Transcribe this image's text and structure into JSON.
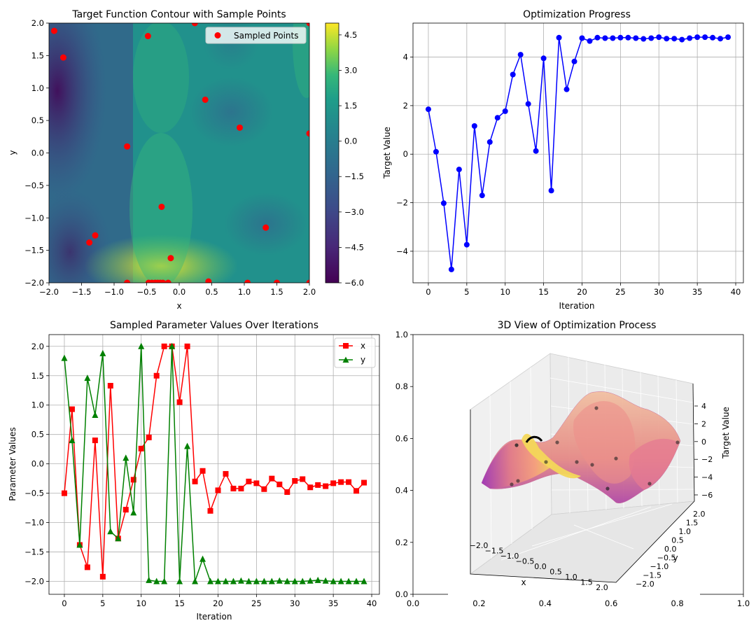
{
  "chart_data": [
    {
      "id": "contour",
      "type": "contour",
      "title": "Target Function Contour with Sample Points",
      "xlabel": "x",
      "ylabel": "y",
      "xlim": [
        -2,
        2
      ],
      "ylim": [
        -2,
        2
      ],
      "xticks": [
        "−2.0",
        "−1.5",
        "−1.0",
        "−0.5",
        "0.0",
        "0.5",
        "1.0",
        "1.5",
        "2.0"
      ],
      "yticks": [
        "−2.0",
        "−1.5",
        "−1.0",
        "−0.5",
        "0.0",
        "0.5",
        "1.0",
        "1.5",
        "2.0"
      ],
      "colorbar": {
        "range": [
          -6.0,
          5.0
        ],
        "ticks": [
          "−6.0",
          "−4.5",
          "−3.0",
          "−1.5",
          "0.0",
          "1.5",
          "3.0",
          "4.5"
        ],
        "colormap": "viridis"
      },
      "legend": {
        "label": "Sampled Points",
        "location": "upper right"
      },
      "points_color": "#ff0000",
      "points": [
        [
          -1.92,
          1.88
        ],
        [
          -1.78,
          1.47
        ],
        [
          -0.48,
          1.8
        ],
        [
          0.24,
          2.0
        ],
        [
          2.0,
          2.0
        ],
        [
          0.4,
          0.82
        ],
        [
          0.93,
          0.39
        ],
        [
          2.0,
          0.3
        ],
        [
          -0.8,
          0.1
        ],
        [
          -0.27,
          -0.83
        ],
        [
          1.33,
          -1.15
        ],
        [
          -1.29,
          -1.27
        ],
        [
          -1.38,
          -1.38
        ],
        [
          -0.13,
          -1.62
        ],
        [
          -0.8,
          -2.0
        ],
        [
          -0.47,
          -2.0
        ],
        [
          -0.42,
          -2.0
        ],
        [
          -0.37,
          -2.0
        ],
        [
          -0.33,
          -2.0
        ],
        [
          -0.29,
          -2.0
        ],
        [
          -0.25,
          -2.0
        ],
        [
          -0.17,
          -2.0
        ],
        [
          0.45,
          -1.98
        ],
        [
          1.05,
          -2.0
        ],
        [
          1.5,
          -2.0
        ],
        [
          2.0,
          -2.0
        ]
      ]
    },
    {
      "id": "progress",
      "type": "line",
      "title": "Optimization Progress",
      "xlabel": "Iteration",
      "ylabel": "Target Value",
      "xlim": [
        -2,
        41
      ],
      "ylim": [
        -5.3,
        5.4
      ],
      "xticks": [
        0,
        5,
        10,
        15,
        20,
        25,
        30,
        35,
        40
      ],
      "yticks": [
        -4,
        -2,
        0,
        2,
        4
      ],
      "grid": true,
      "color": "#0000ff",
      "x": [
        0,
        1,
        2,
        3,
        4,
        5,
        6,
        7,
        8,
        9,
        10,
        11,
        12,
        13,
        14,
        15,
        16,
        17,
        18,
        19,
        20,
        21,
        22,
        23,
        24,
        25,
        26,
        27,
        28,
        29,
        30,
        31,
        32,
        33,
        34,
        35,
        36,
        37,
        38,
        39
      ],
      "values": [
        1.85,
        0.1,
        -2.02,
        -4.75,
        -0.63,
        -3.73,
        1.16,
        -1.7,
        0.5,
        1.5,
        1.77,
        3.28,
        4.1,
        2.07,
        0.13,
        3.95,
        -1.5,
        4.8,
        2.67,
        3.82,
        4.78,
        4.66,
        4.8,
        4.78,
        4.78,
        4.8,
        4.8,
        4.78,
        4.75,
        4.78,
        4.82,
        4.76,
        4.76,
        4.72,
        4.78,
        4.82,
        4.82,
        4.8,
        4.76,
        4.82
      ]
    },
    {
      "id": "params",
      "type": "line",
      "title": "Sampled Parameter Values Over Iterations",
      "xlabel": "Iteration",
      "ylabel": "Parameter Values",
      "xlim": [
        -2,
        41
      ],
      "ylim": [
        -2.22,
        2.2
      ],
      "xticks": [
        0,
        5,
        10,
        15,
        20,
        25,
        30,
        35,
        40
      ],
      "yticks": [
        "−2.0",
        "−1.5",
        "−1.0",
        "−0.5",
        "0.0",
        "0.5",
        "1.0",
        "1.5",
        "2.0"
      ],
      "grid": true,
      "legend_location": "upper right",
      "series": [
        {
          "name": "x",
          "color": "#ff0000",
          "marker": "square",
          "values": [
            -0.5,
            0.93,
            -1.38,
            -1.76,
            0.4,
            -1.92,
            1.33,
            -1.27,
            -0.78,
            -0.27,
            0.26,
            0.45,
            1.5,
            2.0,
            2.0,
            1.05,
            2.0,
            -0.3,
            -0.12,
            -0.8,
            -0.45,
            -0.17,
            -0.42,
            -0.42,
            -0.3,
            -0.33,
            -0.43,
            -0.25,
            -0.35,
            -0.48,
            -0.29,
            -0.26,
            -0.4,
            -0.36,
            -0.38,
            -0.33,
            -0.31,
            -0.31,
            -0.46,
            -0.32
          ]
        },
        {
          "name": "y",
          "color": "#008000",
          "marker": "triangle",
          "values": [
            1.8,
            0.4,
            -1.38,
            1.46,
            0.83,
            1.88,
            -1.15,
            -1.27,
            0.1,
            -0.83,
            2.0,
            -1.98,
            -2.0,
            -2.0,
            2.0,
            -2.0,
            0.3,
            -2.0,
            -1.62,
            -2.0,
            -2.0,
            -2.0,
            -2.0,
            -1.99,
            -2.0,
            -2.0,
            -2.0,
            -2.0,
            -1.99,
            -2.0,
            -2.0,
            -2.0,
            -1.99,
            -1.98,
            -1.99,
            -2.0,
            -2.0,
            -2.0,
            -2.0,
            -2.0
          ]
        }
      ]
    },
    {
      "id": "surface3d",
      "type": "surface3d",
      "title": "3D View of Optimization Process",
      "xlabel": "x",
      "ylabel": "y",
      "zlabel": "Target Value",
      "colormap": "plasma",
      "outer_xticks": [
        "0.0",
        "0.2",
        "0.4",
        "0.6",
        "0.8",
        "1.0"
      ],
      "outer_yticks": [
        "0.0",
        "0.2",
        "0.4",
        "0.6",
        "0.8",
        "1.0"
      ],
      "xticks": [
        "−2.0",
        "−1.5",
        "−1.0",
        "−0.5",
        "0.0",
        "0.5",
        "1.0",
        "1.5",
        "2.0"
      ],
      "yticks": [
        "−2.0",
        "−1.5",
        "−1.0",
        "−0.5",
        "0.0",
        "0.5",
        "1.0",
        "1.5",
        "2.0"
      ],
      "zticks": [
        "−6",
        "−4",
        "−2",
        "0",
        "2",
        "4"
      ]
    }
  ]
}
